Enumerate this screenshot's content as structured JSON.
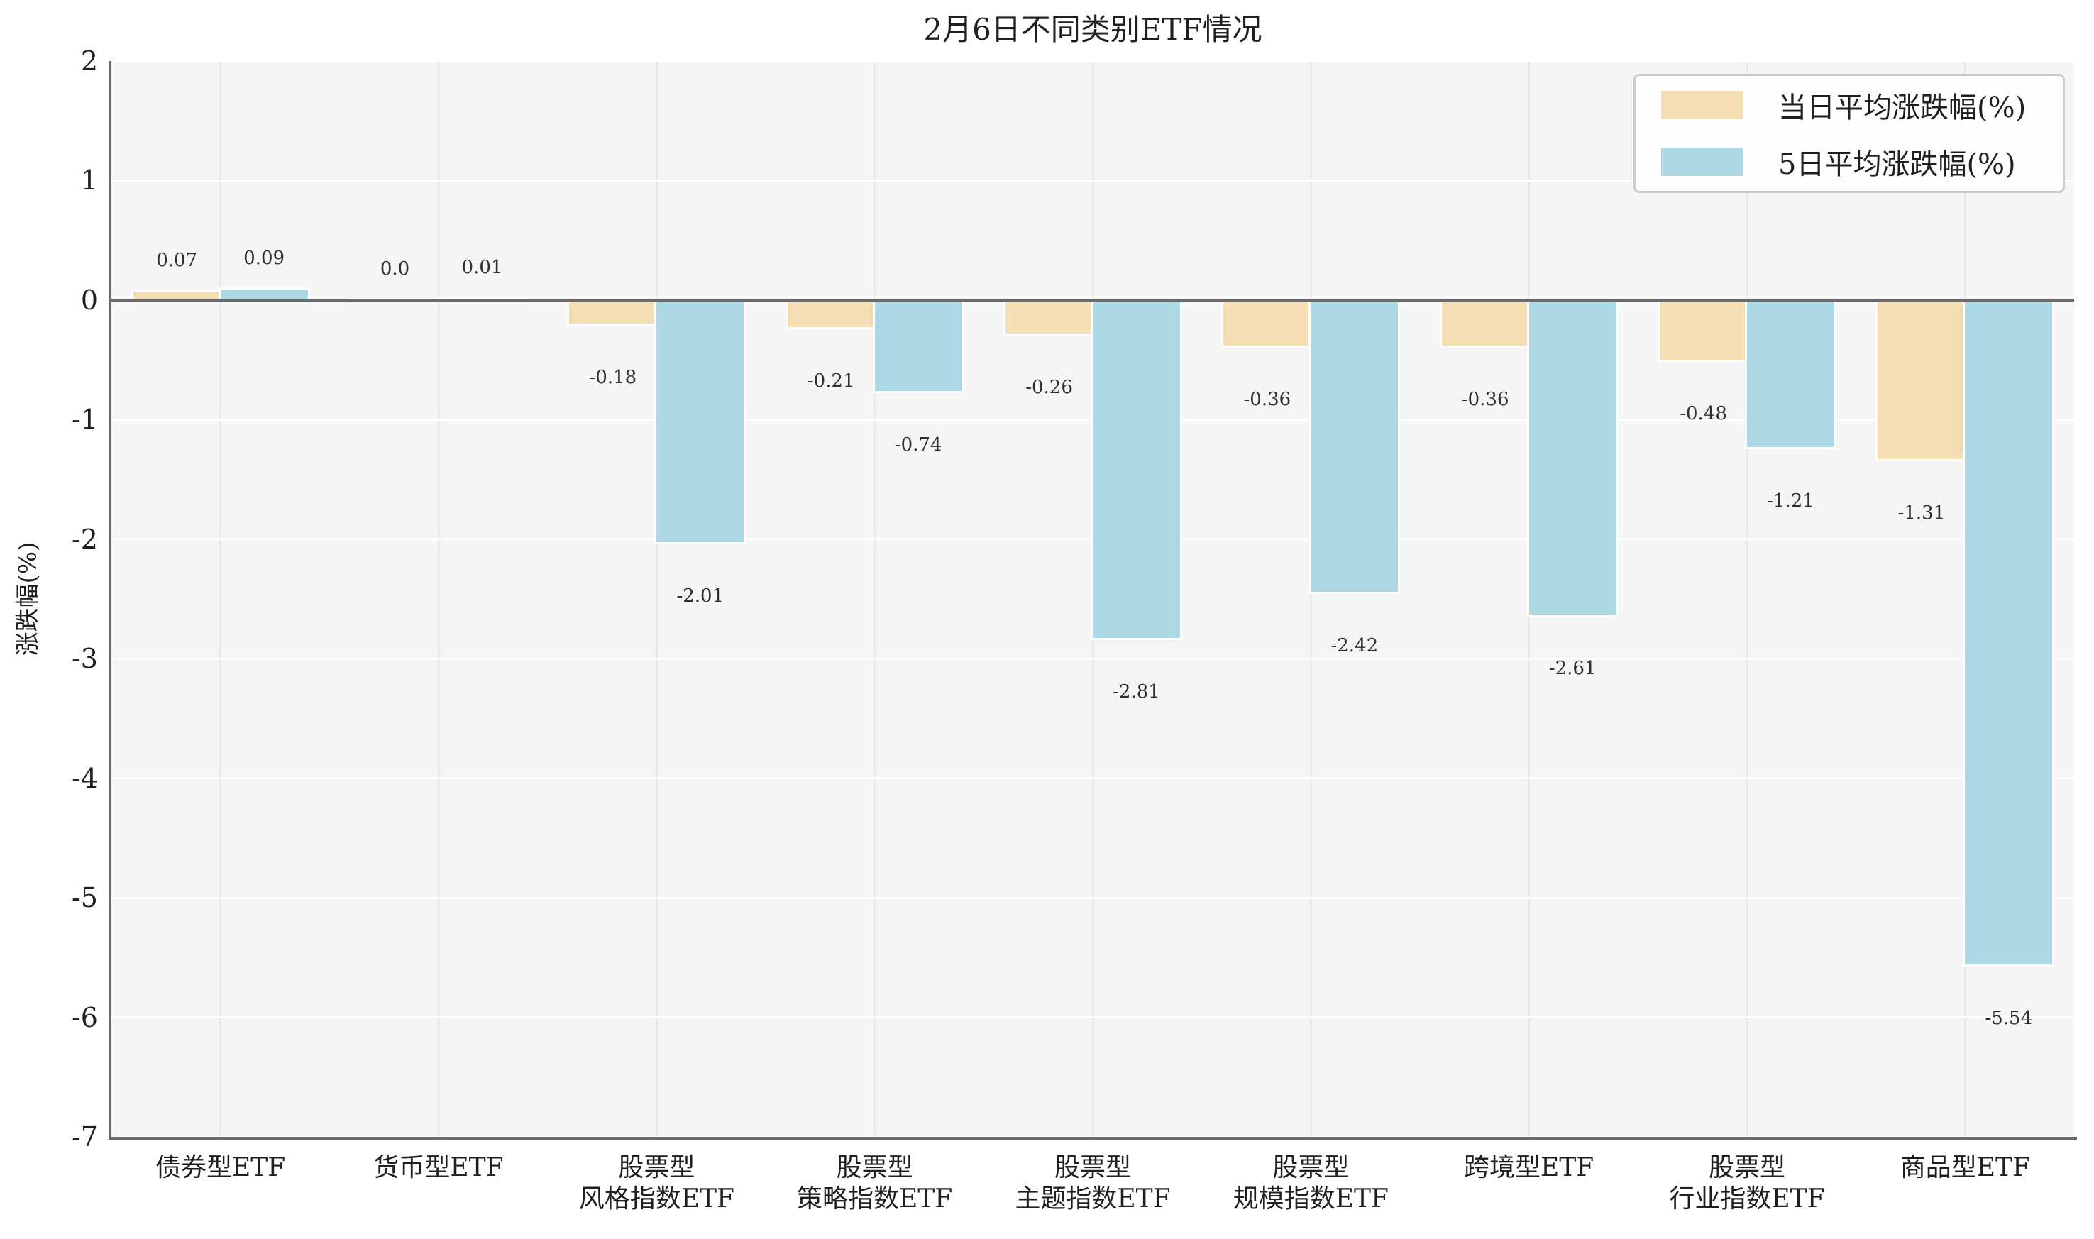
{
  "figure": {
    "title": "2月6日不同类别ETF情况",
    "ylabel": "涨跌幅(%)"
  },
  "legend": {
    "items": [
      {
        "label": "当日平均涨跌幅(%)",
        "color": "#f5deb3"
      },
      {
        "label": "5日平均涨跌幅(%)",
        "color": "#add8e6"
      }
    ]
  },
  "chart_data": {
    "type": "bar",
    "title": "2月6日不同类别ETF情况",
    "xlabel": "",
    "ylabel": "涨跌幅(%)",
    "ylim": [
      -7,
      2
    ],
    "yticks": [
      "2",
      "1",
      "0",
      "-1",
      "-2",
      "-3",
      "-4",
      "-5",
      "-6",
      "-7"
    ],
    "grid": true,
    "legend_position": "upper right",
    "categories": [
      "债券型ETF",
      "货币型ETF",
      "股票型\n风格指数ETF",
      "股票型\n策略指数ETF",
      "股票型\n主题指数ETF",
      "股票型\n规模指数ETF",
      "跨境型ETF",
      "股票型\n行业指数ETF",
      "商品型ETF"
    ],
    "series": [
      {
        "name": "当日平均涨跌幅(%)",
        "color": "#f5deb3",
        "values": [
          0.07,
          0.0,
          -0.18,
          -0.21,
          -0.26,
          -0.36,
          -0.36,
          -0.48,
          -1.31
        ],
        "labels": [
          "0.07",
          "0.0",
          "-0.18",
          "-0.21",
          "-0.26",
          "-0.36",
          "-0.36",
          "-0.48",
          "-1.31"
        ]
      },
      {
        "name": "5日平均涨跌幅(%)",
        "color": "#add8e6",
        "values": [
          0.09,
          0.01,
          -2.01,
          -0.74,
          -2.81,
          -2.42,
          -2.61,
          -1.21,
          -5.54
        ],
        "labels": [
          "0.09",
          "0.01",
          "-2.01",
          "-0.74",
          "-2.81",
          "-2.42",
          "-2.61",
          "-1.21",
          "-5.54"
        ]
      }
    ],
    "colors": {
      "plot_background": "#f5f5f5",
      "outer_background": "#ffffff",
      "horizontal_grid": "#ffffff",
      "vertical_grid": "#e9e9e9",
      "spine": "#6a6a6a",
      "text": "#1f1f1f",
      "bar_edge": "#ffffff",
      "legend_border": "#cccccc"
    }
  }
}
